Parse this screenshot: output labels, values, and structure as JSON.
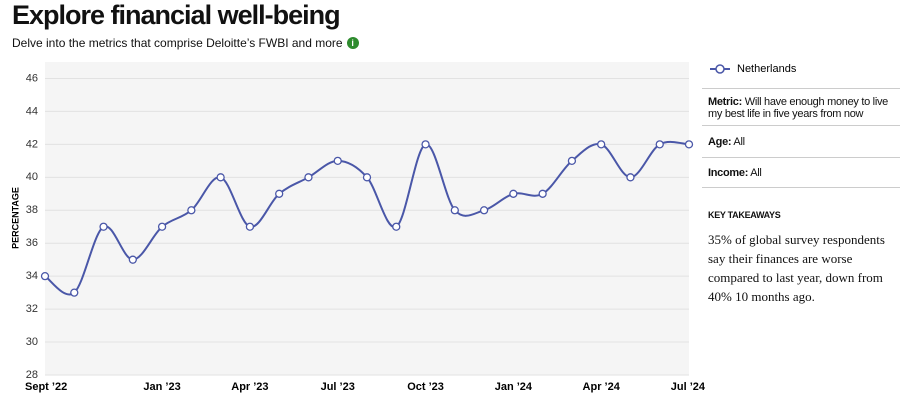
{
  "header": {
    "title": "Explore financial well-being",
    "subtitle": "Delve into the metrics that comprise Deloitte’s FWBI and more"
  },
  "chart_data": {
    "type": "line",
    "y_label": "PERCENTAGE",
    "categories": [
      "Sept ’22",
      null,
      null,
      null,
      "Jan ’23",
      null,
      null,
      "Apr ’23",
      null,
      null,
      "Jul ’23",
      null,
      null,
      "Oct ’23",
      null,
      null,
      "Jan ’24",
      null,
      null,
      "Apr ’24",
      null,
      null,
      "Jul ’24"
    ],
    "series": [
      {
        "name": "Netherlands",
        "color": "#4a57a8",
        "values": [
          34,
          33,
          37,
          35,
          37,
          38,
          40,
          37,
          39,
          40,
          41,
          40,
          37,
          42,
          38,
          38,
          39,
          39,
          41,
          42,
          40,
          42,
          42
        ]
      }
    ],
    "ylim": [
      28,
      47
    ],
    "yticks": [
      28,
      30,
      32,
      34,
      36,
      38,
      40,
      42,
      44,
      46
    ],
    "grid": true
  },
  "sidebar": {
    "metric_label": "Metric:",
    "metric": "Will have enough money to live my best life in five years from now",
    "age_label": "Age:",
    "age": "All",
    "income_label": "Income:",
    "income": "All",
    "takeaways_title": "KEY TAKEAWAYS",
    "takeaways": "35% of global survey respondents say their finances are worse compared to last year, down from 40% 10 months ago."
  }
}
